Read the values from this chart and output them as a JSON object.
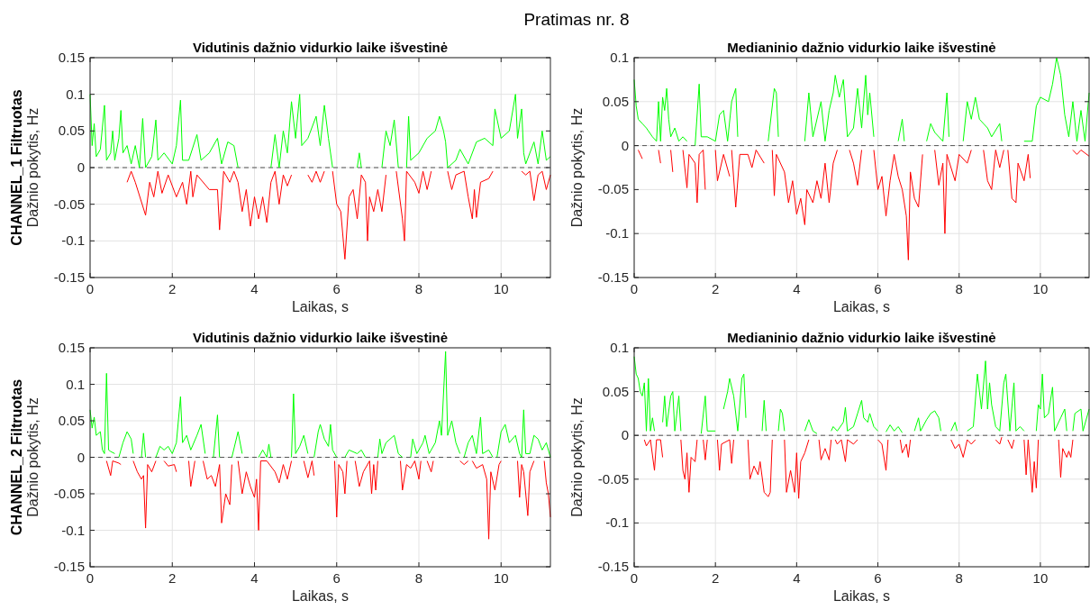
{
  "chart_data": [
    {
      "type": "line",
      "title": "Vidutinis dažnio vidurkio laike išvestinė",
      "xlabel": "Laikas, s",
      "ylabel": "CHANNEL_1 Filtruotas\nDažnio pokytis, Hz",
      "annotations": [
        "Pratimas nr. 8"
      ],
      "xlim": [
        0,
        11.2
      ],
      "xticks": [
        0,
        2,
        4,
        6,
        8,
        10
      ],
      "ylim": [
        -0.15,
        0.15
      ],
      "yticks": [
        -0.15,
        -0.1,
        -0.05,
        0,
        0.05,
        0.1,
        0.15
      ],
      "grid": true,
      "ref_lines": [
        {
          "axis": "y",
          "value": 0,
          "color": "#555555",
          "line_style": "dashed"
        }
      ],
      "series": [
        {
          "color": "#00ff00",
          "x": [
            0,
            0.05,
            0.1,
            0.15,
            0.25,
            0.35,
            0.4,
            0.5,
            0.55,
            0.6,
            0.7,
            0.75,
            0.8,
            0.9,
            1.0,
            1.1,
            1.2,
            1.28,
            1.35,
            1.5,
            1.6,
            1.65,
            1.8,
            2.0,
            2.1,
            2.2,
            2.25,
            2.4,
            2.6,
            2.7,
            2.9,
            3.1,
            3.2,
            3.35,
            3.5,
            3.6,
            null,
            4.4,
            4.5,
            4.6,
            4.7,
            4.8,
            4.9,
            5.0,
            5.1,
            5.15,
            5.3,
            5.5,
            5.6,
            5.7,
            5.8,
            5.9,
            null,
            6.5,
            6.55,
            6.6,
            null,
            7.1,
            7.2,
            7.3,
            7.4,
            7.5,
            null,
            7.7,
            7.75,
            7.8,
            8.0,
            8.2,
            8.4,
            8.5,
            8.6,
            8.65,
            8.7,
            8.9,
            9.0,
            9.2,
            9.4,
            9.6,
            9.8,
            9.85,
            10.0,
            10.2,
            10.35,
            10.4,
            10.5,
            10.55,
            10.6,
            10.8,
            10.9,
            11.0,
            11.1,
            11.2
          ],
          "values": [
            0.1,
            0.03,
            0.06,
            0.015,
            0.025,
            0.085,
            0.01,
            0.02,
            0.05,
            0.01,
            0.04,
            0.078,
            0.02,
            0.03,
            0.005,
            0.03,
            0.0,
            0.067,
            0.0,
            0.015,
            0.065,
            0.01,
            0.02,
            0.005,
            0.03,
            0.092,
            0.01,
            0.01,
            0.045,
            0.01,
            0.02,
            0.04,
            0.005,
            0.035,
            0.03,
            0.0,
            null,
            0.0,
            0.045,
            0.0,
            0.05,
            0.02,
            0.09,
            0.04,
            0.1,
            0.03,
            0.04,
            0.07,
            0.03,
            0.085,
            0.04,
            0.0,
            null,
            0.0,
            0.02,
            0.0,
            null,
            0.0,
            0.05,
            0.03,
            0.065,
            0.0,
            null,
            0.0,
            0.07,
            0.01,
            0.02,
            0.04,
            0.05,
            0.07,
            0.05,
            0.035,
            0.0,
            0.01,
            0.025,
            0.005,
            0.035,
            0.04,
            0.03,
            0.08,
            0.04,
            0.05,
            0.1,
            0.04,
            0.08,
            0.02,
            0.005,
            0.035,
            0.005,
            0.05,
            0.01,
            0.015
          ]
        },
        {
          "color": "#ff0000",
          "x": [
            0.9,
            1.0,
            1.1,
            1.35,
            1.45,
            1.55,
            1.65,
            1.75,
            1.9,
            2.1,
            2.25,
            2.35,
            2.45,
            2.5,
            2.6,
            2.9,
            3.1,
            3.15,
            3.25,
            3.4,
            3.5,
            3.6,
            3.7,
            3.8,
            3.9,
            4.0,
            4.1,
            4.2,
            4.3,
            4.4,
            4.5,
            4.6,
            4.7,
            4.8,
            4.9,
            null,
            5.3,
            5.4,
            5.5,
            5.6,
            5.7,
            null,
            5.9,
            6.0,
            6.1,
            6.2,
            6.3,
            6.4,
            6.5,
            6.6,
            6.7,
            6.75,
            6.8,
            6.9,
            7.0,
            7.1,
            7.2,
            null,
            7.45,
            7.6,
            7.65,
            7.7,
            7.9,
            8.0,
            8.1,
            8.2,
            8.3,
            null,
            8.7,
            8.8,
            8.9,
            9.1,
            9.2,
            9.3,
            9.35,
            9.4,
            9.5,
            9.7,
            9.8,
            null,
            10.5,
            10.6,
            10.7,
            10.8,
            10.9,
            11.0,
            11.1,
            11.2
          ],
          "values": [
            -0.02,
            -0.005,
            -0.02,
            -0.065,
            -0.02,
            -0.04,
            -0.005,
            -0.035,
            -0.01,
            -0.04,
            -0.02,
            -0.05,
            -0.005,
            -0.04,
            -0.01,
            -0.03,
            -0.03,
            -0.085,
            -0.005,
            -0.02,
            -0.005,
            -0.02,
            -0.06,
            -0.03,
            -0.08,
            -0.04,
            -0.07,
            -0.04,
            -0.075,
            -0.02,
            -0.005,
            -0.05,
            -0.01,
            -0.025,
            -0.01,
            null,
            -0.01,
            -0.02,
            -0.005,
            -0.02,
            -0.005,
            null,
            -0.005,
            -0.05,
            -0.06,
            -0.125,
            -0.04,
            -0.03,
            -0.07,
            -0.01,
            -0.02,
            -0.1,
            -0.04,
            -0.06,
            -0.03,
            -0.06,
            -0.01,
            null,
            -0.005,
            -0.07,
            -0.1,
            -0.005,
            -0.02,
            -0.035,
            -0.005,
            -0.03,
            -0.005,
            null,
            -0.005,
            -0.03,
            -0.01,
            -0.005,
            -0.04,
            -0.07,
            -0.03,
            -0.068,
            -0.02,
            -0.015,
            -0.005,
            null,
            -0.005,
            -0.01,
            -0.005,
            -0.045,
            -0.01,
            -0.005,
            -0.03,
            -0.01
          ]
        }
      ]
    },
    {
      "type": "line",
      "title": "Medianinio dažnio vidurkio laike išvestinė",
      "xlabel": "Laikas, s",
      "ylabel": "Dažnio pokytis, Hz",
      "xlim": [
        0,
        11.2
      ],
      "xticks": [
        0,
        2,
        4,
        6,
        8,
        10
      ],
      "ylim": [
        -0.15,
        0.1
      ],
      "yticks": [
        -0.15,
        -0.1,
        -0.05,
        0,
        0.05,
        0.1
      ],
      "grid": true,
      "ref_lines": [
        {
          "axis": "y",
          "value": 0,
          "color": "#555555",
          "line_style": "dashed"
        }
      ],
      "series": [
        {
          "color": "#00ff00",
          "x": [
            0,
            0.05,
            0.1,
            0.2,
            0.3,
            0.45,
            0.55,
            0.6,
            0.65,
            0.7,
            0.75,
            0.8,
            0.85,
            0.9,
            1.0,
            1.1,
            1.2,
            1.3,
            null,
            1.5,
            1.6,
            1.65,
            1.8,
            2.0,
            2.1,
            2.2,
            2.3,
            2.4,
            2.5,
            2.55,
            null,
            3.3,
            3.45,
            3.5,
            3.55,
            null,
            4.2,
            4.3,
            4.4,
            4.6,
            4.7,
            4.8,
            4.9,
            4.95,
            5.05,
            5.15,
            5.25,
            5.4,
            5.5,
            5.6,
            5.7,
            5.75,
            5.8,
            5.9,
            null,
            6.5,
            6.6,
            6.65,
            null,
            7.2,
            7.3,
            7.4,
            7.6,
            7.7,
            7.75,
            null,
            8.1,
            8.2,
            8.3,
            8.4,
            8.5,
            8.6,
            8.7,
            8.8,
            9.0,
            9.05,
            null,
            9.6,
            9.8,
            9.9,
            10.0,
            10.2,
            10.3,
            10.4,
            10.5,
            10.6,
            10.7,
            10.8,
            10.9,
            11.0,
            11.1,
            11.2
          ],
          "values": [
            0.075,
            0.045,
            0.03,
            0.025,
            0.02,
            0.01,
            0.005,
            0.05,
            0.005,
            0.055,
            0.04,
            0.065,
            0.03,
            0.01,
            0.02,
            0.005,
            0.01,
            0.005,
            null,
            0.0,
            0.07,
            0.01,
            0.01,
            0.005,
            0.035,
            0.04,
            0.005,
            0.05,
            0.065,
            0.01,
            null,
            0.005,
            0.065,
            0.06,
            0.01,
            null,
            0.005,
            0.06,
            0.01,
            0.05,
            0.005,
            0.04,
            0.06,
            0.08,
            0.055,
            0.075,
            0.01,
            0.02,
            0.065,
            0.02,
            0.08,
            0.035,
            0.06,
            0.01,
            null,
            0.005,
            0.03,
            0.005,
            null,
            0.005,
            0.025,
            0.015,
            0.005,
            0.06,
            0.01,
            null,
            0.005,
            0.05,
            0.03,
            0.055,
            0.03,
            0.025,
            0.02,
            0.01,
            0.025,
            0.005,
            null,
            0.005,
            0.005,
            0.045,
            0.055,
            0.05,
            0.07,
            0.1,
            0.08,
            0.035,
            0.01,
            0.05,
            0.005,
            0.04,
            0.005,
            0.06
          ]
        },
        {
          "color": "#ff0000",
          "x": [
            0.1,
            0.2,
            null,
            0.6,
            0.65,
            null,
            0.9,
            0.95,
            null,
            1.2,
            1.3,
            1.35,
            1.5,
            1.55,
            1.6,
            1.7,
            1.75,
            null,
            2.0,
            2.05,
            2.2,
            2.35,
            null,
            2.4,
            2.5,
            2.6,
            2.8,
            2.9,
            3.0,
            3.2,
            null,
            3.4,
            3.45,
            3.5,
            3.7,
            3.8,
            3.9,
            4.0,
            4.1,
            4.2,
            4.25,
            4.4,
            4.5,
            4.6,
            4.7,
            4.8,
            4.9,
            5.0,
            null,
            5.3,
            5.4,
            5.5,
            5.6,
            null,
            5.9,
            6.0,
            6.1,
            6.2,
            6.3,
            6.4,
            6.5,
            6.6,
            6.7,
            6.75,
            6.8,
            6.9,
            7.0,
            7.1,
            null,
            7.4,
            7.5,
            7.6,
            7.65,
            7.7,
            7.9,
            8.0,
            8.2,
            8.3,
            null,
            8.6,
            8.7,
            8.8,
            8.9,
            9.0,
            9.1,
            null,
            9.2,
            9.3,
            9.4,
            9.45,
            9.6,
            9.7,
            9.75,
            null,
            10.8,
            10.9,
            11.0,
            11.2
          ],
          "values": [
            -0.005,
            -0.015,
            null,
            -0.005,
            -0.02,
            null,
            -0.005,
            -0.03,
            null,
            -0.005,
            -0.048,
            -0.01,
            -0.02,
            -0.065,
            -0.01,
            -0.005,
            -0.05,
            null,
            -0.005,
            -0.04,
            -0.01,
            -0.035,
            null,
            -0.005,
            -0.07,
            -0.01,
            -0.01,
            -0.025,
            -0.005,
            -0.02,
            null,
            -0.005,
            -0.057,
            -0.01,
            -0.03,
            -0.065,
            -0.04,
            -0.078,
            -0.06,
            -0.09,
            -0.05,
            -0.065,
            -0.04,
            -0.06,
            -0.02,
            -0.065,
            -0.02,
            -0.005,
            null,
            -0.005,
            -0.02,
            -0.045,
            -0.005,
            null,
            -0.005,
            -0.05,
            -0.035,
            -0.08,
            -0.04,
            -0.01,
            -0.035,
            -0.05,
            -0.08,
            -0.13,
            -0.03,
            -0.06,
            -0.07,
            -0.01,
            null,
            -0.005,
            -0.045,
            -0.02,
            -0.1,
            -0.01,
            -0.04,
            -0.01,
            -0.02,
            -0.005,
            null,
            -0.005,
            -0.04,
            -0.05,
            -0.005,
            -0.025,
            -0.005,
            null,
            -0.005,
            -0.06,
            -0.065,
            -0.02,
            -0.04,
            -0.01,
            -0.037,
            null,
            -0.005,
            -0.01,
            -0.005,
            -0.012
          ]
        }
      ]
    },
    {
      "type": "line",
      "title": "Vidutinis dažnio vidurkio laike išvestinė",
      "xlabel": "Laikas, s",
      "ylabel": "CHANNEL_2 Filtruotas\nDažnio pokytis, Hz",
      "xlim": [
        0,
        11.2
      ],
      "xticks": [
        0,
        2,
        4,
        6,
        8,
        10
      ],
      "ylim": [
        -0.15,
        0.15
      ],
      "yticks": [
        -0.15,
        -0.1,
        -0.05,
        0,
        0.05,
        0.1,
        0.15
      ],
      "grid": true,
      "ref_lines": [
        {
          "axis": "y",
          "value": 0,
          "color": "#555555",
          "line_style": "dashed"
        }
      ],
      "series": [
        {
          "color": "#00ff00",
          "x": [
            0,
            0.05,
            0.1,
            0.15,
            0.25,
            0.3,
            0.35,
            0.4,
            0.45,
            0.5,
            0.6,
            null,
            0.7,
            0.8,
            0.9,
            1.0,
            1.05,
            null,
            1.25,
            1.3,
            1.35,
            null,
            1.6,
            1.7,
            1.8,
            1.9,
            2.0,
            2.1,
            2.2,
            2.25,
            2.35,
            2.45,
            2.6,
            2.7,
            2.8,
            null,
            3.0,
            3.1,
            3.15,
            null,
            3.45,
            3.6,
            3.7,
            null,
            4.1,
            4.2,
            4.3,
            4.35,
            4.4,
            null,
            4.9,
            4.95,
            5.0,
            5.1,
            5.2,
            5.3,
            null,
            5.45,
            5.55,
            5.6,
            5.7,
            5.8,
            5.85,
            5.9,
            6.0,
            null,
            6.2,
            6.3,
            6.5,
            6.6,
            6.7,
            null,
            7.0,
            7.05,
            7.1,
            7.2,
            7.4,
            7.5,
            7.6,
            null,
            7.8,
            7.85,
            7.95,
            8.1,
            8.15,
            8.25,
            8.4,
            8.5,
            8.55,
            8.65,
            8.7,
            8.8,
            8.9,
            9.0,
            null,
            9.1,
            9.2,
            9.3,
            9.4,
            9.5,
            9.55,
            9.7,
            9.8,
            null,
            9.9,
            10.0,
            10.1,
            10.2,
            10.35,
            10.45,
            10.5,
            10.55,
            10.6,
            10.7,
            10.8,
            10.9,
            11.0,
            11.1,
            11.2
          ],
          "values": [
            0.065,
            0.04,
            0.055,
            0.03,
            0.035,
            0.01,
            0.005,
            0.115,
            0.01,
            0.008,
            0.005,
            null,
            0.0,
            0.02,
            0.035,
            0.025,
            0.005,
            null,
            0.0,
            0.033,
            0.0,
            null,
            0.0,
            0.015,
            0.01,
            0.015,
            0.005,
            0.02,
            0.083,
            0.02,
            0.03,
            0.01,
            0.03,
            0.045,
            0.005,
            null,
            0.0,
            0.058,
            0.0,
            null,
            0.0,
            0.035,
            0.005,
            null,
            0.0,
            0.01,
            0.0,
            0.018,
            0.0,
            null,
            0.0,
            0.087,
            0.005,
            0.015,
            0.03,
            0.005,
            null,
            0.0,
            0.035,
            0.045,
            0.025,
            0.015,
            0.045,
            0.01,
            0.0,
            null,
            0.0,
            0.01,
            0.005,
            0.01,
            0.0,
            null,
            0.0,
            0.025,
            0.005,
            0.02,
            0.03,
            0.005,
            0.0,
            null,
            0.0,
            0.025,
            0.005,
            0.02,
            0.03,
            0.005,
            0.02,
            0.05,
            0.03,
            0.145,
            0.03,
            0.05,
            0.02,
            0.005,
            null,
            0.0,
            0.02,
            0.03,
            0.005,
            0.055,
            0.005,
            0.01,
            0.0,
            null,
            0.0,
            0.035,
            0.045,
            0.02,
            0.03,
            0.005,
            0.0,
            0.065,
            0.005,
            0.005,
            0.03,
            0.025,
            0.01,
            0.02,
            0.0
          ]
        },
        {
          "color": "#ff0000",
          "x": [
            0.4,
            0.5,
            0.55,
            0.7,
            0.75,
            null,
            1.05,
            1.15,
            1.25,
            1.3,
            1.35,
            1.4,
            1.5,
            1.6,
            null,
            1.8,
            1.9,
            2.05,
            2.1,
            null,
            2.4,
            2.45,
            2.55,
            null,
            2.75,
            2.85,
            2.95,
            3.05,
            3.15,
            3.2,
            3.3,
            3.4,
            3.45,
            null,
            3.6,
            3.7,
            3.8,
            3.9,
            4.0,
            4.05,
            4.1,
            4.15,
            4.3,
            4.5,
            4.6,
            4.7,
            4.8,
            4.9,
            null,
            5.2,
            5.3,
            5.4,
            5.45,
            null,
            5.95,
            6.0,
            6.05,
            6.15,
            6.2,
            6.25,
            null,
            6.45,
            6.55,
            6.65,
            6.8,
            6.85,
            6.9,
            6.95,
            7.0,
            null,
            7.55,
            7.6,
            7.7,
            7.8,
            7.9,
            8.0,
            8.05,
            null,
            8.2,
            8.3,
            8.35,
            null,
            9.0,
            9.1,
            9.2,
            null,
            9.3,
            9.4,
            9.55,
            9.65,
            9.7,
            9.75,
            9.85,
            9.95,
            10.0,
            null,
            10.4,
            10.45,
            10.5,
            10.55,
            10.65,
            10.7,
            10.8,
            null,
            11.05,
            11.1,
            11.15,
            11.2
          ],
          "values": [
            -0.005,
            -0.025,
            -0.005,
            -0.008,
            -0.01,
            null,
            -0.005,
            -0.02,
            -0.03,
            -0.025,
            -0.097,
            -0.01,
            -0.02,
            -0.005,
            null,
            -0.005,
            -0.012,
            -0.01,
            -0.02,
            null,
            -0.005,
            -0.04,
            -0.005,
            null,
            -0.005,
            -0.03,
            -0.025,
            -0.04,
            -0.01,
            -0.09,
            -0.05,
            -0.065,
            -0.01,
            null,
            -0.005,
            -0.05,
            -0.02,
            -0.04,
            -0.055,
            -0.03,
            -0.1,
            -0.005,
            -0.005,
            -0.02,
            -0.035,
            -0.01,
            -0.03,
            -0.005,
            null,
            -0.005,
            -0.028,
            -0.005,
            -0.025,
            null,
            -0.005,
            -0.082,
            -0.01,
            -0.02,
            -0.05,
            -0.005,
            null,
            -0.005,
            -0.04,
            -0.02,
            -0.005,
            -0.05,
            -0.01,
            -0.045,
            -0.005,
            null,
            -0.005,
            -0.045,
            -0.01,
            -0.015,
            -0.005,
            -0.03,
            -0.005,
            null,
            -0.005,
            -0.02,
            -0.005,
            null,
            -0.005,
            -0.01,
            -0.005,
            null,
            -0.005,
            -0.015,
            -0.01,
            -0.03,
            -0.112,
            -0.02,
            -0.045,
            -0.01,
            -0.005,
            null,
            -0.005,
            -0.055,
            -0.01,
            -0.02,
            -0.08,
            -0.02,
            -0.005,
            null,
            -0.005,
            -0.035,
            -0.05,
            -0.082
          ]
        }
      ]
    },
    {
      "type": "line",
      "title": "Medianinio dažnio vidurkio laike išvestinė",
      "xlabel": "Laikas, s",
      "ylabel": "Dažnio pokytis, Hz",
      "xlim": [
        0,
        11.2
      ],
      "xticks": [
        0,
        2,
        4,
        6,
        8,
        10
      ],
      "ylim": [
        -0.15,
        0.1
      ],
      "yticks": [
        -0.15,
        -0.1,
        -0.05,
        0,
        0.05,
        0.1
      ],
      "grid": true,
      "ref_lines": [
        {
          "axis": "y",
          "value": 0,
          "color": "#555555",
          "line_style": "dashed"
        }
      ],
      "series": [
        {
          "color": "#00ff00",
          "x": [
            0,
            0.05,
            0.1,
            0.15,
            0.2,
            0.25,
            0.3,
            0.35,
            0.4,
            0.45,
            0.5,
            null,
            0.7,
            0.75,
            0.8,
            0.9,
            0.95,
            1.0,
            1.1,
            1.15,
            null,
            1.65,
            1.75,
            1.8,
            2.0,
            null,
            2.2,
            2.3,
            2.35,
            2.45,
            2.55,
            2.65,
            2.7,
            2.75,
            null,
            3.15,
            3.2,
            3.25,
            null,
            3.55,
            3.6,
            3.65,
            3.7,
            null,
            4.2,
            4.3,
            4.4,
            4.5,
            null,
            4.85,
            4.9,
            5.0,
            5.15,
            5.2,
            5.25,
            5.4,
            5.5,
            5.6,
            5.65,
            5.75,
            5.8,
            5.9,
            6.0,
            null,
            6.2,
            6.3,
            6.4,
            6.5,
            6.6,
            null,
            6.9,
            7.0,
            7.05,
            7.2,
            7.3,
            7.4,
            7.5,
            7.55,
            null,
            7.8,
            7.9,
            7.95,
            null,
            8.2,
            8.35,
            8.45,
            8.55,
            8.65,
            8.7,
            8.75,
            8.8,
            8.9,
            9.0,
            9.1,
            9.15,
            9.25,
            9.35,
            9.4,
            9.5,
            9.6,
            null,
            9.9,
            9.95,
            10.0,
            10.05,
            10.1,
            10.2,
            10.3,
            10.35,
            10.5,
            10.6,
            10.65,
            null,
            10.8,
            10.85,
            11.0,
            11.05,
            11.2
          ],
          "values": [
            0.09,
            0.07,
            0.065,
            0.05,
            0.045,
            0.06,
            0.005,
            0.065,
            0.005,
            0.02,
            0.005,
            null,
            0.015,
            0.045,
            0.01,
            0.045,
            0.05,
            0.005,
            0.045,
            0.005,
            null,
            0.002,
            0.045,
            0.005,
            0.005,
            null,
            0.03,
            0.05,
            0.065,
            0.045,
            0.005,
            0.065,
            0.07,
            0.02,
            null,
            0.005,
            0.04,
            0.005,
            null,
            0.005,
            0.03,
            0.025,
            0.005,
            null,
            0.005,
            0.018,
            0.005,
            0.002,
            null,
            0.005,
            0.01,
            0.005,
            0.015,
            0.032,
            0.005,
            0.01,
            0.025,
            0.04,
            0.02,
            0.015,
            0.025,
            0.01,
            0.005,
            null,
            0.004,
            0.012,
            0.005,
            0.01,
            0.003,
            null,
            0.005,
            0.02,
            0.005,
            0.018,
            0.025,
            0.028,
            0.02,
            0.005,
            null,
            0.005,
            0.015,
            0.005,
            null,
            0.005,
            0.01,
            0.07,
            0.03,
            0.085,
            0.03,
            0.06,
            0.035,
            0.01,
            0.005,
            0.06,
            0.07,
            0.005,
            0.06,
            0.005,
            0.01,
            0.005,
            null,
            0.005,
            0.035,
            0.03,
            0.07,
            0.02,
            0.025,
            0.055,
            0.005,
            0.02,
            0.03,
            0.005,
            null,
            0.005,
            0.025,
            0.03,
            0.005,
            0.03
          ]
        },
        {
          "color": "#ff0000",
          "x": [
            0.25,
            0.3,
            0.4,
            0.5,
            0.55,
            0.65,
            0.7,
            null,
            1.15,
            1.2,
            1.25,
            1.3,
            1.35,
            1.4,
            1.5,
            1.55,
            null,
            1.7,
            1.75,
            1.8,
            null,
            2.05,
            2.1,
            2.15,
            2.35,
            2.4,
            2.45,
            null,
            2.8,
            2.85,
            2.95,
            3.05,
            3.1,
            3.2,
            3.3,
            3.35,
            3.4,
            null,
            3.7,
            3.75,
            3.85,
            3.95,
            4.0,
            4.05,
            4.1,
            4.2,
            4.3,
            null,
            4.55,
            4.6,
            4.7,
            4.8,
            4.85,
            null,
            4.95,
            5.0,
            5.1,
            5.2,
            5.25,
            5.4,
            5.5,
            null,
            6.0,
            6.1,
            6.2,
            6.25,
            null,
            6.55,
            6.6,
            6.7,
            6.75,
            6.8,
            null,
            7.8,
            7.9,
            8.0,
            8.1,
            8.2,
            8.3,
            8.4,
            null,
            8.9,
            9.0,
            9.05,
            null,
            9.2,
            9.3,
            9.35,
            null,
            9.6,
            9.65,
            9.7,
            9.8,
            9.85,
            9.9,
            9.95,
            null,
            10.45,
            10.5,
            10.55,
            10.65,
            10.7,
            10.75,
            10.8
          ],
          "values": [
            -0.005,
            -0.012,
            -0.005,
            -0.04,
            -0.005,
            -0.005,
            -0.025,
            null,
            -0.005,
            -0.04,
            -0.05,
            -0.02,
            -0.065,
            -0.025,
            -0.03,
            -0.005,
            null,
            -0.005,
            -0.028,
            -0.005,
            null,
            -0.005,
            -0.04,
            -0.01,
            -0.005,
            -0.032,
            -0.005,
            null,
            -0.005,
            -0.05,
            -0.035,
            -0.045,
            -0.03,
            -0.065,
            -0.07,
            -0.065,
            -0.005,
            null,
            -0.005,
            -0.065,
            -0.04,
            -0.065,
            -0.02,
            -0.072,
            -0.03,
            -0.02,
            -0.005,
            null,
            -0.005,
            -0.028,
            -0.015,
            -0.028,
            -0.005,
            null,
            -0.005,
            -0.01,
            -0.005,
            -0.03,
            -0.005,
            -0.01,
            -0.005,
            null,
            -0.005,
            -0.01,
            -0.04,
            -0.005,
            null,
            -0.005,
            -0.02,
            -0.01,
            -0.025,
            -0.005,
            null,
            -0.005,
            -0.015,
            -0.01,
            -0.025,
            -0.005,
            -0.01,
            -0.005,
            null,
            -0.005,
            -0.01,
            -0.002,
            null,
            -0.005,
            -0.015,
            -0.005,
            null,
            -0.005,
            -0.045,
            -0.005,
            -0.065,
            -0.03,
            -0.06,
            -0.005,
            null,
            -0.005,
            -0.048,
            -0.015,
            -0.025,
            -0.018,
            -0.025,
            -0.005
          ]
        }
      ]
    }
  ]
}
